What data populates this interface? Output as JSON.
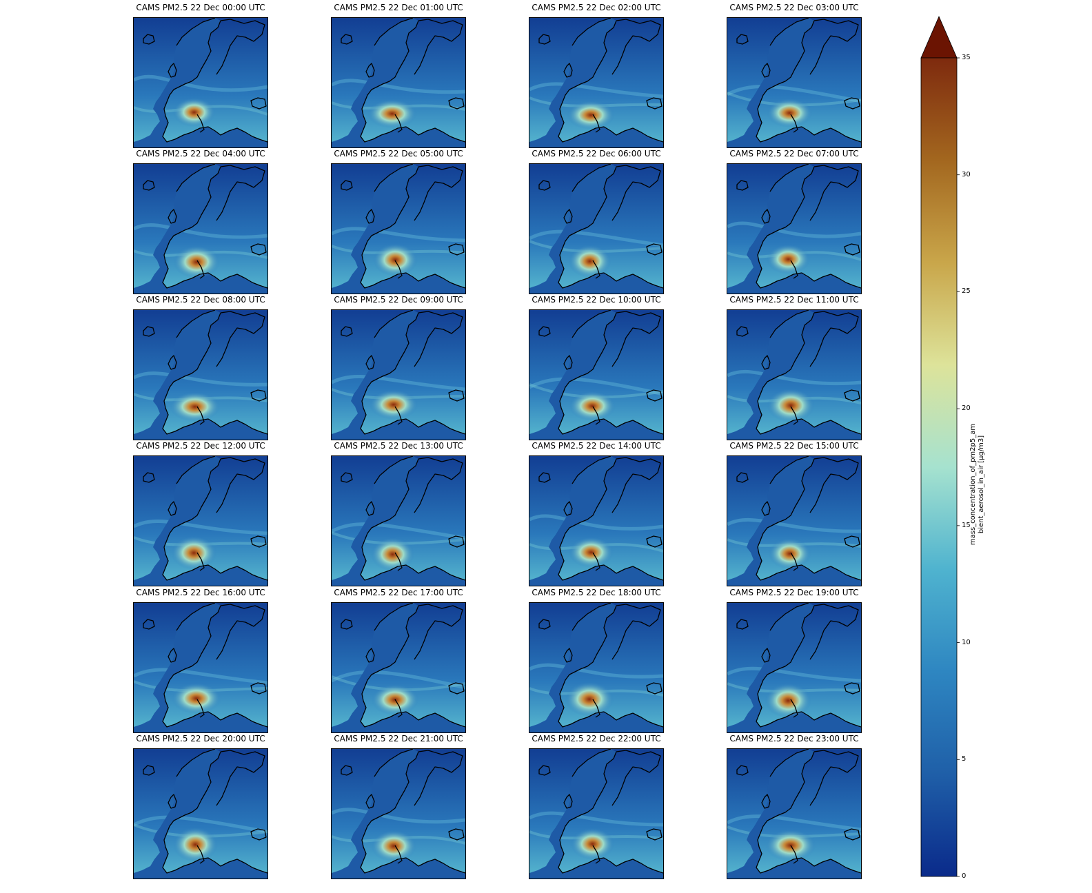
{
  "panels": [
    {
      "title": "CAMS PM2.5 22 Dec 00:00 UTC"
    },
    {
      "title": "CAMS PM2.5 22 Dec 01:00 UTC"
    },
    {
      "title": "CAMS PM2.5 22 Dec 02:00 UTC"
    },
    {
      "title": "CAMS PM2.5 22 Dec 03:00 UTC"
    },
    {
      "title": "CAMS PM2.5 22 Dec 04:00 UTC"
    },
    {
      "title": "CAMS PM2.5 22 Dec 05:00 UTC"
    },
    {
      "title": "CAMS PM2.5 22 Dec 06:00 UTC"
    },
    {
      "title": "CAMS PM2.5 22 Dec 07:00 UTC"
    },
    {
      "title": "CAMS PM2.5 22 Dec 08:00 UTC"
    },
    {
      "title": "CAMS PM2.5 22 Dec 09:00 UTC"
    },
    {
      "title": "CAMS PM2.5 22 Dec 10:00 UTC"
    },
    {
      "title": "CAMS PM2.5 22 Dec 11:00 UTC"
    },
    {
      "title": "CAMS PM2.5 22 Dec 12:00 UTC"
    },
    {
      "title": "CAMS PM2.5 22 Dec 13:00 UTC"
    },
    {
      "title": "CAMS PM2.5 22 Dec 14:00 UTC"
    },
    {
      "title": "CAMS PM2.5 22 Dec 15:00 UTC"
    },
    {
      "title": "CAMS PM2.5 22 Dec 16:00 UTC"
    },
    {
      "title": "CAMS PM2.5 22 Dec 17:00 UTC"
    },
    {
      "title": "CAMS PM2.5 22 Dec 18:00 UTC"
    },
    {
      "title": "CAMS PM2.5 22 Dec 19:00 UTC"
    },
    {
      "title": "CAMS PM2.5 22 Dec 20:00 UTC"
    },
    {
      "title": "CAMS PM2.5 22 Dec 21:00 UTC"
    },
    {
      "title": "CAMS PM2.5 22 Dec 22:00 UTC"
    },
    {
      "title": "CAMS PM2.5 22 Dec 23:00 UTC"
    }
  ],
  "colorbar": {
    "label_line1": "mass_concentration_of_pm2p5_am",
    "label_line2": "bient_aerosol_in_air [µg/m3]",
    "min": 0,
    "max": 35,
    "extend": "max",
    "ticks": [
      "0",
      "5",
      "10",
      "15",
      "20",
      "25",
      "30",
      "35"
    ],
    "colors": [
      "#0a2a8a",
      "#1f5fa8",
      "#2e86c1",
      "#4fb3cf",
      "#a6e2cf",
      "#dde39a",
      "#c9a64a",
      "#a3671f",
      "#7e2a0e",
      "#6b1402"
    ]
  }
}
